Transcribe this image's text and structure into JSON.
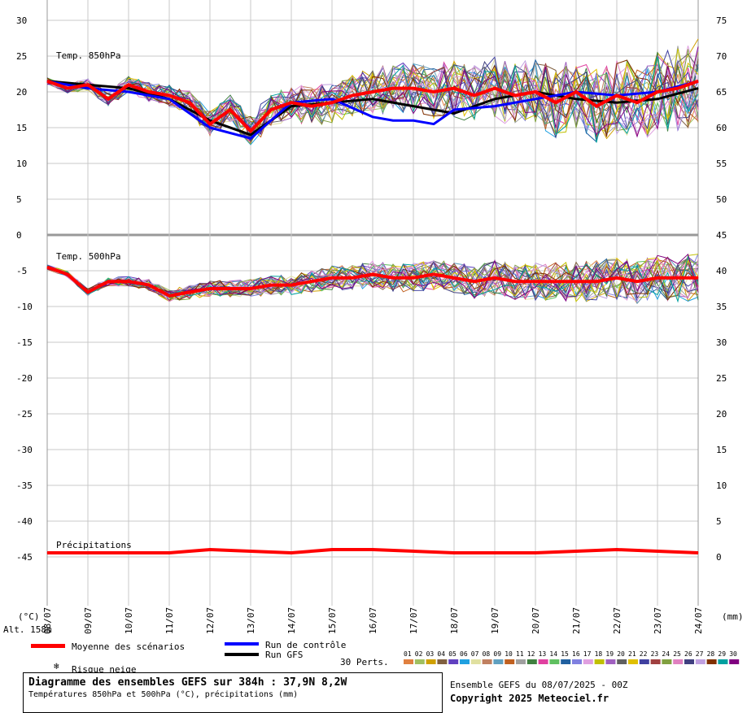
{
  "chart_data": {
    "type": "line",
    "title": "Diagramme des ensembles GEFS sur 384h : 37,9N 8,2W",
    "subtitle": "Températures 850hPa et 500hPa (°C), précipitations (mm)",
    "run_info": "Ensemble GEFS du 08/07/2025 - 00Z",
    "copyright": "Copyright 2025 Meteociel.fr",
    "left_unit": "(°C)",
    "right_unit": "(mm)",
    "altitude": "Alt. 158m",
    "x_labels": [
      "08/07",
      "09/07",
      "10/07",
      "11/07",
      "12/07",
      "13/07",
      "14/07",
      "15/07",
      "16/07",
      "17/07",
      "18/07",
      "19/07",
      "20/07",
      "21/07",
      "22/07",
      "23/07",
      "24/07"
    ],
    "left_ticks": [
      30,
      25,
      20,
      15,
      10,
      5,
      0,
      -5,
      -10,
      -15,
      -20,
      -25,
      -30,
      -35,
      -40,
      -45
    ],
    "right_ticks": [
      75,
      70,
      65,
      60,
      55,
      50,
      45,
      40,
      35,
      30,
      25,
      20,
      15,
      10,
      5,
      0
    ],
    "panels": {
      "t850": {
        "label": "Temp. 850hPa",
        "ylim": [
          0,
          30
        ]
      },
      "t500": {
        "label": "Temp. 500hPa",
        "ylim": [
          -45,
          0
        ]
      },
      "precip": {
        "label": "Précipitations",
        "ylim": [
          0,
          45
        ]
      }
    },
    "grid": true,
    "series": [
      {
        "name": "Moyenne des scénarios",
        "color": "#ff0000",
        "panel": "t850",
        "x": [
          0,
          0.5,
          1,
          1.5,
          2,
          2.5,
          3,
          3.5,
          4,
          4.5,
          5,
          5.5,
          6,
          6.5,
          7,
          7.5,
          8,
          8.5,
          9,
          9.5,
          10,
          10.5,
          11,
          11.5,
          12,
          12.5,
          13,
          13.5,
          14,
          14.5,
          15,
          15.5,
          16
        ],
        "values": [
          21.5,
          20.5,
          21,
          19,
          21,
          20,
          19.5,
          18.5,
          15.5,
          17.5,
          14.5,
          17.5,
          18.5,
          18,
          18.5,
          19.5,
          20,
          20.5,
          20.5,
          20,
          20.5,
          19.5,
          20.5,
          19.5,
          20,
          18.5,
          20,
          18,
          19.5,
          18.5,
          20,
          20.5,
          21.5
        ]
      },
      {
        "name": "Moyenne des scénarios",
        "color": "#ff0000",
        "panel": "t500",
        "x": [
          0,
          0.5,
          1,
          1.5,
          2,
          2.5,
          3,
          3.5,
          4,
          4.5,
          5,
          5.5,
          6,
          6.5,
          7,
          7.5,
          8,
          8.5,
          9,
          9.5,
          10,
          10.5,
          11,
          11.5,
          12,
          12.5,
          13,
          13.5,
          14,
          14.5,
          15,
          15.5,
          16
        ],
        "values": [
          -4.5,
          -5.5,
          -8,
          -6.5,
          -6.5,
          -7,
          -8.5,
          -8,
          -7.5,
          -7.5,
          -7.5,
          -7,
          -7,
          -6.5,
          -6,
          -6,
          -5.5,
          -6,
          -6,
          -5.5,
          -6,
          -6.5,
          -6,
          -6.5,
          -6.5,
          -6.5,
          -6.5,
          -6.5,
          -6,
          -6.5,
          -6,
          -6,
          -6
        ]
      },
      {
        "name": "Run de contrôle",
        "color": "#0000ff",
        "panel": "t850",
        "x": [
          0,
          1,
          2,
          3,
          4,
          5,
          6,
          7,
          8,
          8.5,
          9,
          9.5,
          10,
          11,
          12,
          13,
          14,
          15,
          16
        ],
        "values": [
          21.5,
          20.5,
          20,
          19,
          15,
          13.5,
          18.5,
          19,
          16.5,
          16,
          16,
          15.5,
          17.5,
          18,
          19,
          20,
          19.5,
          20,
          21.5
        ]
      },
      {
        "name": "Run GFS",
        "color": "#000000",
        "panel": "t850",
        "x": [
          0,
          1,
          2,
          3,
          4,
          5,
          6,
          7,
          8,
          9,
          10,
          11,
          12,
          13,
          14,
          15,
          16
        ],
        "values": [
          21.5,
          21,
          20.5,
          19,
          16,
          14,
          18,
          18.5,
          19,
          18,
          17,
          19,
          20,
          19,
          18.5,
          19,
          20.5
        ]
      },
      {
        "name": "Moyenne des scénarios",
        "color": "#ff0000",
        "panel": "precip",
        "x": [
          0,
          2,
          3,
          4,
          6,
          7,
          8,
          10,
          12,
          14,
          16
        ],
        "values": [
          0,
          0,
          0,
          0.1,
          0,
          0.1,
          0.1,
          0,
          0,
          0.1,
          0
        ]
      }
    ],
    "legend": {
      "mean": "Moyenne des scénarios",
      "control": "Run de contrôle",
      "gfs": "Run GFS",
      "perts": "30 Perts.",
      "snow": "Risque neige",
      "pert_numbers": [
        "01",
        "02",
        "03",
        "04",
        "05",
        "06",
        "07",
        "08",
        "09",
        "10",
        "11",
        "12",
        "13",
        "14",
        "15",
        "16",
        "17",
        "18",
        "19",
        "20",
        "21",
        "22",
        "23",
        "24",
        "25",
        "26",
        "27",
        "28",
        "29",
        "30"
      ],
      "pert_colors": [
        "#e08040",
        "#a0c060",
        "#d0a000",
        "#806040",
        "#6040c0",
        "#20a0e0",
        "#e0e0a0",
        "#c08060",
        "#60a0c0",
        "#c06020",
        "#a0a0a0",
        "#408040",
        "#e040a0",
        "#60c060",
        "#2060a0",
        "#8080e0",
        "#e0a0e0",
        "#c0c000",
        "#a060c0",
        "#606060",
        "#e0c000",
        "#4040a0",
        "#a04040",
        "#80a040",
        "#e080c0",
        "#404080",
        "#c0a0e0",
        "#803000",
        "#00a0a0",
        "#800080"
      ]
    }
  }
}
